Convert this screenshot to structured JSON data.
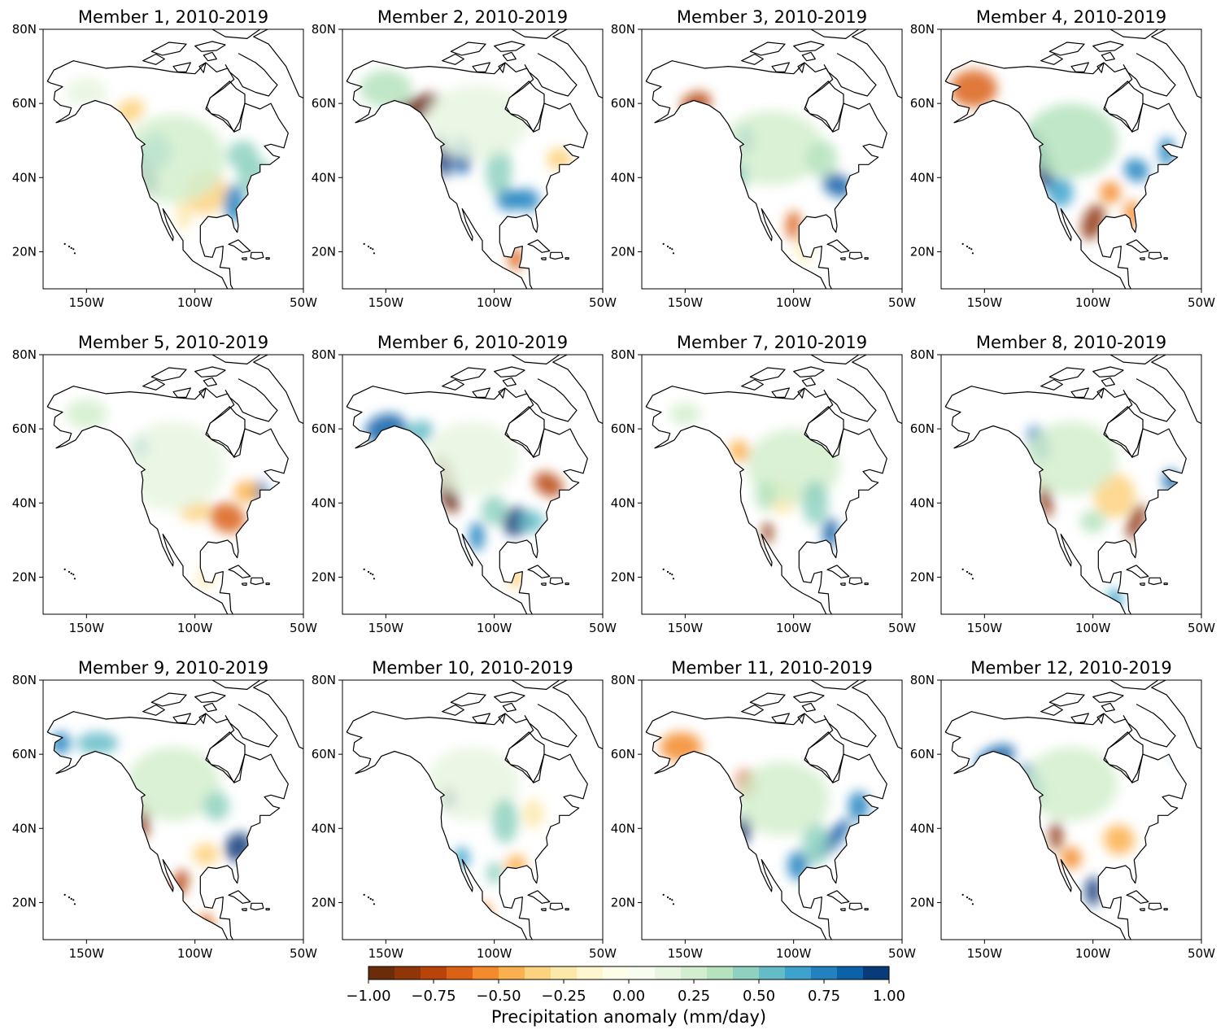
{
  "panels": [
    {
      "title": "Member 1, 2010-2019"
    },
    {
      "title": "Member 2, 2010-2019"
    },
    {
      "title": "Member 3, 2010-2019"
    },
    {
      "title": "Member 4, 2010-2019"
    },
    {
      "title": "Member 5, 2010-2019"
    },
    {
      "title": "Member 6, 2010-2019"
    },
    {
      "title": "Member 7, 2010-2019"
    },
    {
      "title": "Member 8, 2010-2019"
    },
    {
      "title": "Member 9, 2010-2019"
    },
    {
      "title": "Member 10, 2010-2019"
    },
    {
      "title": "Member 11, 2010-2019"
    },
    {
      "title": "Member 12, 2010-2019"
    }
  ],
  "axes": {
    "lat_ticks": [
      "20N",
      "40N",
      "60N",
      "80N"
    ],
    "lat_values": [
      20,
      40,
      60,
      80
    ],
    "lon_ticks": [
      "150W",
      "100W",
      "50W"
    ],
    "lon_values": [
      -150,
      -100,
      -50
    ],
    "lon_range": [
      -170,
      -50
    ],
    "lat_range": [
      10,
      80
    ]
  },
  "colorbar": {
    "label": "Precipitation anomaly (mm/day)",
    "tick_labels": [
      "−1.00",
      "−0.75",
      "−0.50",
      "−0.25",
      "0.00",
      "0.25",
      "0.50",
      "0.75",
      "1.00"
    ],
    "tick_values": [
      -1.0,
      -0.75,
      -0.5,
      -0.25,
      0.0,
      0.25,
      0.5,
      0.75,
      1.0
    ],
    "range": [
      -1.0,
      1.0
    ],
    "colors": [
      "#6b2c0a",
      "#8f3508",
      "#b84409",
      "#db6214",
      "#f38a2c",
      "#fbb04f",
      "#fdd27e",
      "#fbe9aa",
      "#fdf6cf",
      "#fdfde8",
      "#f7fdf1",
      "#e8f6e1",
      "#d3eece",
      "#b5e3bd",
      "#8ed1bf",
      "#64bcc8",
      "#3da2cd",
      "#2182bf",
      "#0b62a9",
      "#083b7a"
    ]
  },
  "colormap": "BrBG-like diverging (brown = dry, white = 0, blue = wet)"
}
